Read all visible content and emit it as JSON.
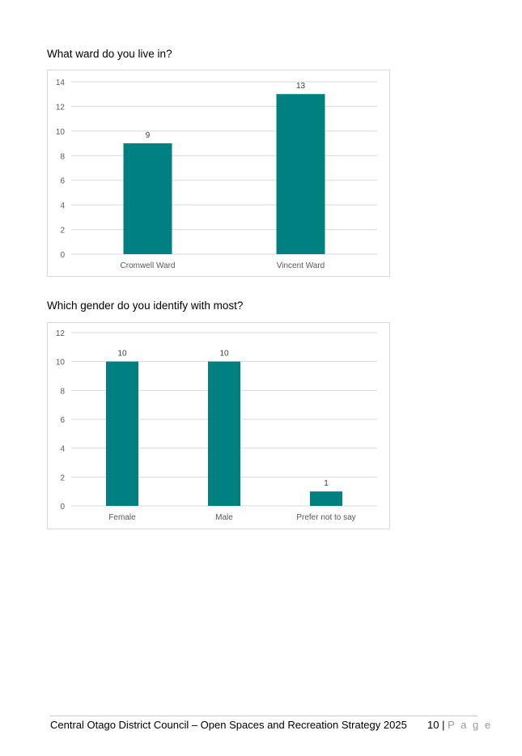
{
  "questions": [
    {
      "title": "What ward do you live in?"
    },
    {
      "title": "Which gender do you identify with most?"
    }
  ],
  "chart_data": [
    {
      "type": "bar",
      "categories": [
        "Cromwell Ward",
        "Vincent Ward"
      ],
      "values": [
        9,
        13
      ],
      "ylim": [
        0,
        14
      ],
      "yticks": [
        0,
        2,
        4,
        6,
        8,
        10,
        12,
        14
      ],
      "grid": true,
      "bar_color": "#008080"
    },
    {
      "type": "bar",
      "categories": [
        "Female",
        "Male",
        "Prefer not to say"
      ],
      "values": [
        10,
        10,
        1
      ],
      "ylim": [
        0,
        12
      ],
      "yticks": [
        0,
        2,
        4,
        6,
        8,
        10,
        12
      ],
      "grid": true,
      "bar_color": "#008080"
    }
  ],
  "footer": {
    "text": "Central Otago District Council – Open Spaces and Recreation Strategy 2025",
    "page_number": "10",
    "separator": "|",
    "page_word": "P a g e"
  }
}
